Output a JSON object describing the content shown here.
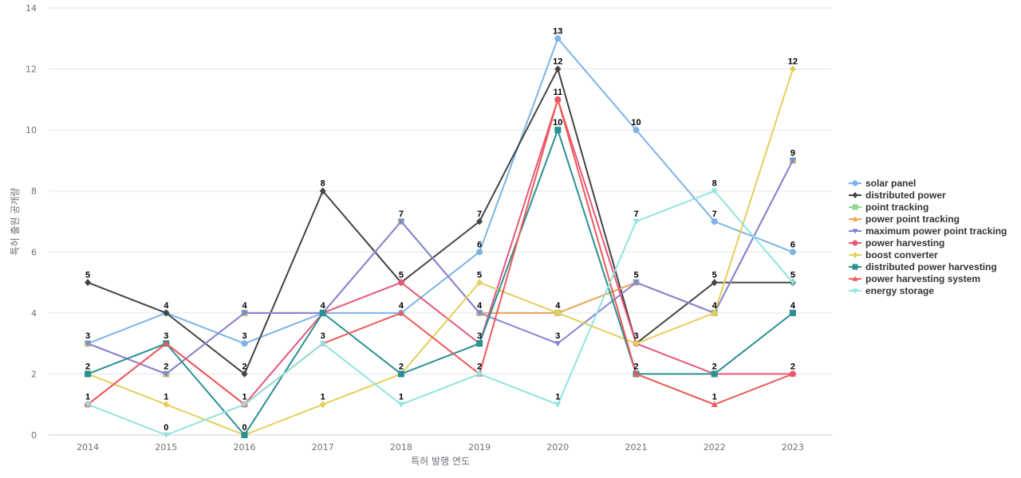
{
  "chart_data": {
    "type": "line",
    "title": "",
    "xlabel": "특허 발행 연도",
    "ylabel": "특허 출원 공개량",
    "categories": [
      "2014",
      "2015",
      "2016",
      "2017",
      "2018",
      "2019",
      "2020",
      "2021",
      "2022",
      "2023"
    ],
    "ylim": [
      0,
      14
    ],
    "yticks": [
      0,
      2,
      4,
      6,
      8,
      10,
      12,
      14
    ],
    "grid": true,
    "legend_position": "right",
    "series": [
      {
        "name": "solar panel",
        "color": "#7eb3e6",
        "marker": "circle",
        "values": [
          3,
          4,
          3,
          4,
          4,
          6,
          13,
          10,
          7,
          6
        ]
      },
      {
        "name": "distributed power",
        "color": "#444444",
        "marker": "diamond",
        "values": [
          5,
          4,
          2,
          8,
          5,
          7,
          12,
          3,
          5,
          5
        ]
      },
      {
        "name": "point tracking",
        "color": "#90d890",
        "marker": "square",
        "values": [
          3,
          2,
          4,
          4,
          7,
          4,
          4,
          5,
          4,
          9
        ]
      },
      {
        "name": "power point tracking",
        "color": "#f0a45c",
        "marker": "triangle",
        "values": [
          3,
          2,
          4,
          4,
          7,
          4,
          4,
          5,
          4,
          9
        ]
      },
      {
        "name": "maximum power point tracking",
        "color": "#8585d6",
        "marker": "triangle-down",
        "values": [
          3,
          2,
          4,
          4,
          7,
          4,
          3,
          5,
          4,
          9
        ]
      },
      {
        "name": "power harvesting",
        "color": "#e8577a",
        "marker": "circle",
        "values": [
          1,
          3,
          1,
          4,
          5,
          3,
          11,
          3,
          2,
          2
        ]
      },
      {
        "name": "boost converter",
        "color": "#e2d05a",
        "marker": "diamond",
        "values": [
          2,
          1,
          0,
          1,
          2,
          5,
          4,
          3,
          4,
          12
        ]
      },
      {
        "name": "distributed power harvesting",
        "color": "#2b9090",
        "marker": "square",
        "values": [
          2,
          3,
          0,
          4,
          2,
          3,
          10,
          2,
          2,
          4
        ]
      },
      {
        "name": "power harvesting system",
        "color": "#ee5a5a",
        "marker": "triangle",
        "values": [
          1,
          3,
          1,
          3,
          4,
          2,
          11,
          2,
          1,
          2
        ]
      },
      {
        "name": "energy storage",
        "color": "#90e4e0",
        "marker": "triangle-down",
        "values": [
          1,
          0,
          1,
          3,
          1,
          2,
          1,
          7,
          8,
          5
        ]
      }
    ],
    "data_labels": [
      {
        "x": "2014",
        "values": [
          5,
          3,
          2,
          1
        ]
      },
      {
        "x": "2015",
        "values": [
          4,
          3,
          2,
          1,
          0
        ]
      },
      {
        "x": "2016",
        "values": [
          4,
          3,
          2,
          1,
          0
        ]
      },
      {
        "x": "2017",
        "values": [
          8,
          4,
          3,
          1
        ]
      },
      {
        "x": "2018",
        "values": [
          7,
          5,
          4,
          2,
          1
        ]
      },
      {
        "x": "2019",
        "values": [
          7,
          6,
          5,
          4,
          3,
          2
        ]
      },
      {
        "x": "2020",
        "values": [
          13,
          12,
          11,
          10,
          4,
          3,
          1
        ]
      },
      {
        "x": "2021",
        "values": [
          10,
          7,
          5,
          3,
          2
        ]
      },
      {
        "x": "2022",
        "values": [
          8,
          7,
          5,
          4,
          2,
          1
        ]
      },
      {
        "x": "2023",
        "values": [
          12,
          9,
          6,
          5,
          4,
          2
        ]
      }
    ]
  }
}
